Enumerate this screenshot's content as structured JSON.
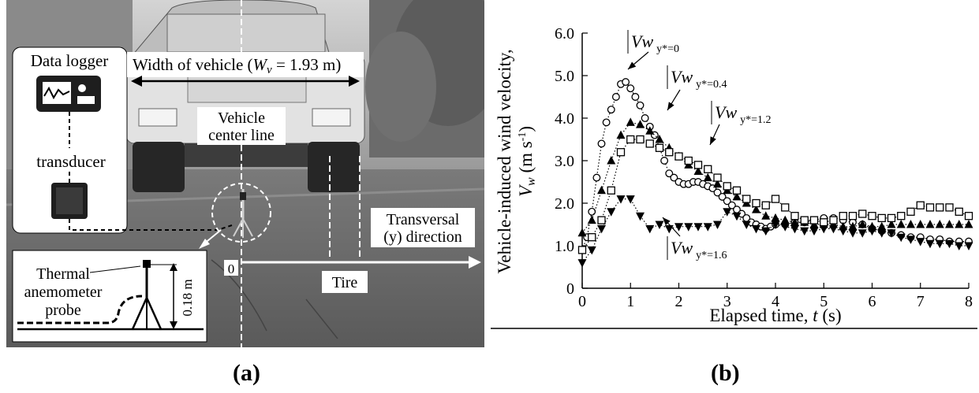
{
  "figure": {
    "panel_a_caption": "(a)",
    "panel_b_caption": "(b)"
  },
  "photo": {
    "data_logger_label": "Data logger",
    "transducer_label": "transducer",
    "width_label_pre": "Width of vehicle (",
    "width_label_sym": "W",
    "width_label_sub": "v",
    "width_label_post": " = 1.93 m)",
    "center_line_label_1": "Vehicle",
    "center_line_label_2": "center line",
    "transversal_label_1": "Transversal",
    "transversal_label_2": "(y) direction",
    "origin_label": "0",
    "tire_label": "Tire",
    "probe_label_1": "Thermal",
    "probe_label_2": "anemometer",
    "probe_label_3": "probe",
    "height_label": "0.18 m"
  },
  "chart_data": {
    "type": "scatter",
    "xlabel_text": "Elapsed time, ",
    "xlabel_sym": "t",
    "xlabel_unit": " (s)",
    "ylabel_line1": "Vehicle-induced wind velocity,",
    "ylabel_sym": "V",
    "ylabel_sub": "w",
    "ylabel_unit": " (m s",
    "ylabel_exp": "-1",
    "ylabel_close": ")",
    "xlim": [
      0,
      8
    ],
    "ylim": [
      0,
      6
    ],
    "xticks": [
      "0",
      "1",
      "2",
      "3",
      "4",
      "5",
      "6",
      "7",
      "8"
    ],
    "yticks": [
      "0",
      "1.0",
      "2.0",
      "3.0",
      "4.0",
      "5.0",
      "6.0"
    ],
    "series": [
      {
        "name": "Vw|y*=0",
        "label_main": "Vw",
        "label_sub": "y*=0",
        "marker": "circle-open",
        "x": [
          0,
          0.1,
          0.2,
          0.3,
          0.4,
          0.5,
          0.6,
          0.7,
          0.8,
          0.9,
          1.0,
          1.1,
          1.2,
          1.3,
          1.4,
          1.5,
          1.6,
          1.7,
          1.8,
          1.9,
          2.0,
          2.1,
          2.2,
          2.3,
          2.4,
          2.5,
          2.6,
          2.7,
          2.8,
          2.9,
          3.0,
          3.1,
          3.2,
          3.3,
          3.4,
          3.5,
          3.6,
          3.7,
          3.8,
          3.9,
          4.0,
          4.2,
          4.4,
          4.6,
          4.8,
          5.0,
          5.2,
          5.4,
          5.6,
          5.8,
          6.0,
          6.2,
          6.4,
          6.6,
          6.8,
          7.0,
          7.2,
          7.4,
          7.6,
          7.8,
          8.0
        ],
        "y": [
          0.9,
          1.2,
          1.8,
          2.6,
          3.4,
          3.9,
          4.2,
          4.5,
          4.8,
          4.85,
          4.7,
          4.5,
          4.3,
          4.0,
          3.8,
          3.6,
          3.3,
          3.0,
          2.7,
          2.6,
          2.5,
          2.45,
          2.45,
          2.5,
          2.5,
          2.45,
          2.4,
          2.35,
          2.25,
          2.15,
          2.05,
          1.95,
          1.85,
          1.75,
          1.65,
          1.55,
          1.5,
          1.45,
          1.4,
          1.45,
          1.5,
          1.5,
          1.55,
          1.55,
          1.6,
          1.65,
          1.65,
          1.6,
          1.55,
          1.5,
          1.4,
          1.35,
          1.3,
          1.25,
          1.2,
          1.2,
          1.15,
          1.15,
          1.1,
          1.1,
          1.1
        ]
      },
      {
        "name": "Vw|y*=0.4",
        "label_main": "Vw",
        "label_sub": "y*=0.4",
        "marker": "triangle-up-filled",
        "x": [
          0,
          0.2,
          0.4,
          0.6,
          0.8,
          1.0,
          1.2,
          1.4,
          1.6,
          1.8,
          2.0,
          2.2,
          2.4,
          2.6,
          2.8,
          3.0,
          3.2,
          3.4,
          3.6,
          3.8,
          4.0,
          4.2,
          4.4,
          4.6,
          4.8,
          5.0,
          5.2,
          5.4,
          5.6,
          5.8,
          6.0,
          6.2,
          6.4,
          6.6,
          6.8,
          7.0,
          7.2,
          7.4,
          7.6,
          7.8,
          8.0
        ],
        "y": [
          1.3,
          1.6,
          2.3,
          3.0,
          3.6,
          3.9,
          3.85,
          3.7,
          3.5,
          3.3,
          3.1,
          2.9,
          2.75,
          2.6,
          2.45,
          2.3,
          2.15,
          2.0,
          1.85,
          1.7,
          1.65,
          1.6,
          1.55,
          1.55,
          1.5,
          1.5,
          1.5,
          1.45,
          1.45,
          1.5,
          1.45,
          1.45,
          1.5,
          1.5,
          1.5,
          1.5,
          1.5,
          1.5,
          1.5,
          1.5,
          1.5
        ]
      },
      {
        "name": "Vw|y*=1.2",
        "label_main": "Vw",
        "label_sub": "y*=1.2",
        "marker": "square-open",
        "x": [
          0,
          0.2,
          0.4,
          0.6,
          0.8,
          1.0,
          1.2,
          1.4,
          1.6,
          1.8,
          2.0,
          2.2,
          2.4,
          2.6,
          2.8,
          3.0,
          3.2,
          3.4,
          3.6,
          3.8,
          4.0,
          4.2,
          4.4,
          4.6,
          4.8,
          5.0,
          5.2,
          5.4,
          5.6,
          5.8,
          6.0,
          6.2,
          6.4,
          6.6,
          6.8,
          7.0,
          7.2,
          7.4,
          7.6,
          7.8,
          8.0
        ],
        "y": [
          0.9,
          1.2,
          1.6,
          2.3,
          3.2,
          3.5,
          3.5,
          3.4,
          3.3,
          3.2,
          3.1,
          3.0,
          2.9,
          2.8,
          2.6,
          2.4,
          2.3,
          2.1,
          2.0,
          1.95,
          2.1,
          1.9,
          1.7,
          1.6,
          1.6,
          1.55,
          1.6,
          1.7,
          1.7,
          1.75,
          1.7,
          1.65,
          1.65,
          1.7,
          1.8,
          1.95,
          1.9,
          1.9,
          1.9,
          1.8,
          1.7
        ]
      },
      {
        "name": "Vw|y*=1.6",
        "label_main": "Vw",
        "label_sub": "y*=1.6",
        "marker": "triangle-down-filled",
        "x": [
          0,
          0.2,
          0.4,
          0.6,
          0.8,
          1.0,
          1.2,
          1.4,
          1.6,
          1.8,
          2.0,
          2.2,
          2.4,
          2.6,
          2.8,
          3.0,
          3.2,
          3.4,
          3.6,
          3.8,
          4.0,
          4.2,
          4.4,
          4.6,
          4.8,
          5.0,
          5.2,
          5.4,
          5.6,
          5.8,
          6.0,
          6.2,
          6.4,
          6.6,
          6.8,
          7.0,
          7.2,
          7.4,
          7.6,
          7.8,
          8.0
        ],
        "y": [
          0.6,
          0.9,
          1.4,
          1.8,
          2.1,
          2.1,
          1.7,
          1.4,
          1.5,
          1.4,
          1.45,
          1.45,
          1.45,
          1.45,
          1.5,
          1.8,
          1.7,
          1.5,
          1.4,
          1.35,
          1.5,
          1.45,
          1.4,
          1.35,
          1.35,
          1.4,
          1.4,
          1.35,
          1.3,
          1.3,
          1.35,
          1.3,
          1.3,
          1.2,
          1.15,
          1.1,
          1.05,
          1.05,
          1.05,
          1.0,
          1.0
        ]
      }
    ]
  }
}
